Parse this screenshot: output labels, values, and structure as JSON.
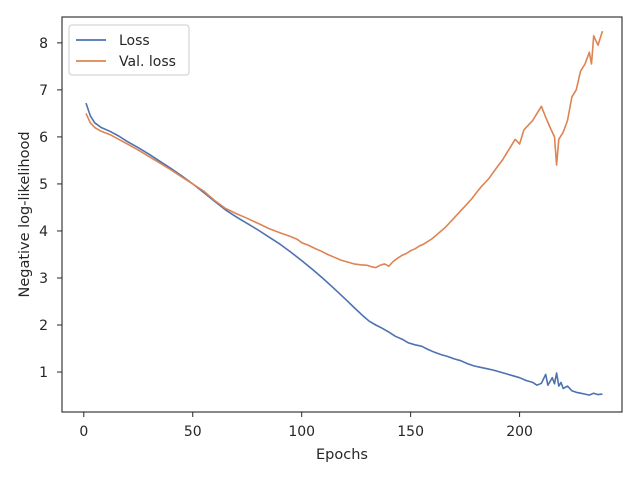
{
  "chart_data": {
    "type": "line",
    "xlabel": "Epochs",
    "ylabel": "Negative log-likelihood",
    "xlim": [
      -10,
      247
    ],
    "ylim": [
      0.15,
      8.55
    ],
    "xticks": [
      0,
      50,
      100,
      150,
      200
    ],
    "yticks": [
      1,
      2,
      3,
      4,
      5,
      6,
      7,
      8
    ],
    "legend_position": "top-left",
    "grid": false,
    "series": [
      {
        "name": "Loss",
        "color": "#4c72b0",
        "x": [
          1,
          3,
          5,
          8,
          12,
          16,
          20,
          25,
          30,
          35,
          40,
          45,
          50,
          55,
          60,
          65,
          70,
          75,
          80,
          85,
          90,
          95,
          100,
          105,
          110,
          115,
          120,
          125,
          128,
          131,
          134,
          137,
          140,
          143,
          146,
          149,
          152,
          155,
          158,
          161,
          164,
          167,
          170,
          173,
          176,
          179,
          182,
          185,
          188,
          191,
          194,
          197,
          200,
          203,
          206,
          208,
          210,
          212,
          213,
          215,
          216,
          217,
          218,
          219,
          220,
          222,
          224,
          226,
          228,
          230,
          232,
          234,
          236,
          238
        ],
        "y": [
          6.72,
          6.45,
          6.3,
          6.2,
          6.12,
          6.02,
          5.9,
          5.77,
          5.63,
          5.48,
          5.33,
          5.17,
          5.0,
          4.82,
          4.63,
          4.45,
          4.3,
          4.16,
          4.02,
          3.87,
          3.72,
          3.55,
          3.37,
          3.18,
          2.98,
          2.77,
          2.55,
          2.33,
          2.2,
          2.08,
          2.0,
          1.93,
          1.85,
          1.76,
          1.7,
          1.62,
          1.58,
          1.55,
          1.48,
          1.42,
          1.37,
          1.33,
          1.28,
          1.24,
          1.18,
          1.13,
          1.1,
          1.07,
          1.04,
          1.0,
          0.96,
          0.92,
          0.88,
          0.82,
          0.78,
          0.72,
          0.76,
          0.95,
          0.72,
          0.88,
          0.75,
          0.98,
          0.7,
          0.78,
          0.65,
          0.7,
          0.6,
          0.57,
          0.55,
          0.53,
          0.51,
          0.55,
          0.52,
          0.53
        ]
      },
      {
        "name": "Val. loss",
        "color": "#dd8452",
        "x": [
          1,
          3,
          5,
          8,
          12,
          16,
          20,
          25,
          30,
          35,
          40,
          45,
          50,
          55,
          60,
          65,
          70,
          75,
          80,
          85,
          90,
          95,
          98,
          100,
          103,
          106,
          109,
          112,
          115,
          118,
          121,
          124,
          127,
          130,
          132,
          134,
          136,
          138,
          140,
          142,
          144,
          146,
          148,
          150,
          152,
          154,
          156,
          158,
          160,
          162,
          164,
          166,
          168,
          170,
          172,
          174,
          176,
          178,
          180,
          182,
          184,
          186,
          188,
          190,
          192,
          194,
          196,
          198,
          200,
          202,
          204,
          206,
          208,
          210,
          212,
          214,
          216,
          217,
          218,
          220,
          222,
          224,
          226,
          228,
          230,
          232,
          233,
          234,
          236,
          238
        ],
        "y": [
          6.5,
          6.3,
          6.2,
          6.12,
          6.05,
          5.95,
          5.85,
          5.72,
          5.58,
          5.44,
          5.3,
          5.15,
          5.0,
          4.85,
          4.65,
          4.48,
          4.37,
          4.27,
          4.16,
          4.05,
          3.96,
          3.88,
          3.82,
          3.75,
          3.7,
          3.63,
          3.57,
          3.5,
          3.44,
          3.38,
          3.34,
          3.3,
          3.28,
          3.27,
          3.24,
          3.22,
          3.27,
          3.3,
          3.25,
          3.35,
          3.42,
          3.48,
          3.52,
          3.58,
          3.62,
          3.68,
          3.72,
          3.78,
          3.84,
          3.92,
          4.0,
          4.08,
          4.18,
          4.28,
          4.38,
          4.48,
          4.58,
          4.68,
          4.8,
          4.92,
          5.02,
          5.12,
          5.25,
          5.38,
          5.5,
          5.65,
          5.8,
          5.95,
          5.85,
          6.15,
          6.25,
          6.35,
          6.5,
          6.65,
          6.42,
          6.2,
          6.0,
          5.4,
          5.95,
          6.1,
          6.35,
          6.85,
          7.0,
          7.4,
          7.55,
          7.8,
          7.55,
          8.15,
          7.95,
          8.25
        ]
      }
    ]
  }
}
